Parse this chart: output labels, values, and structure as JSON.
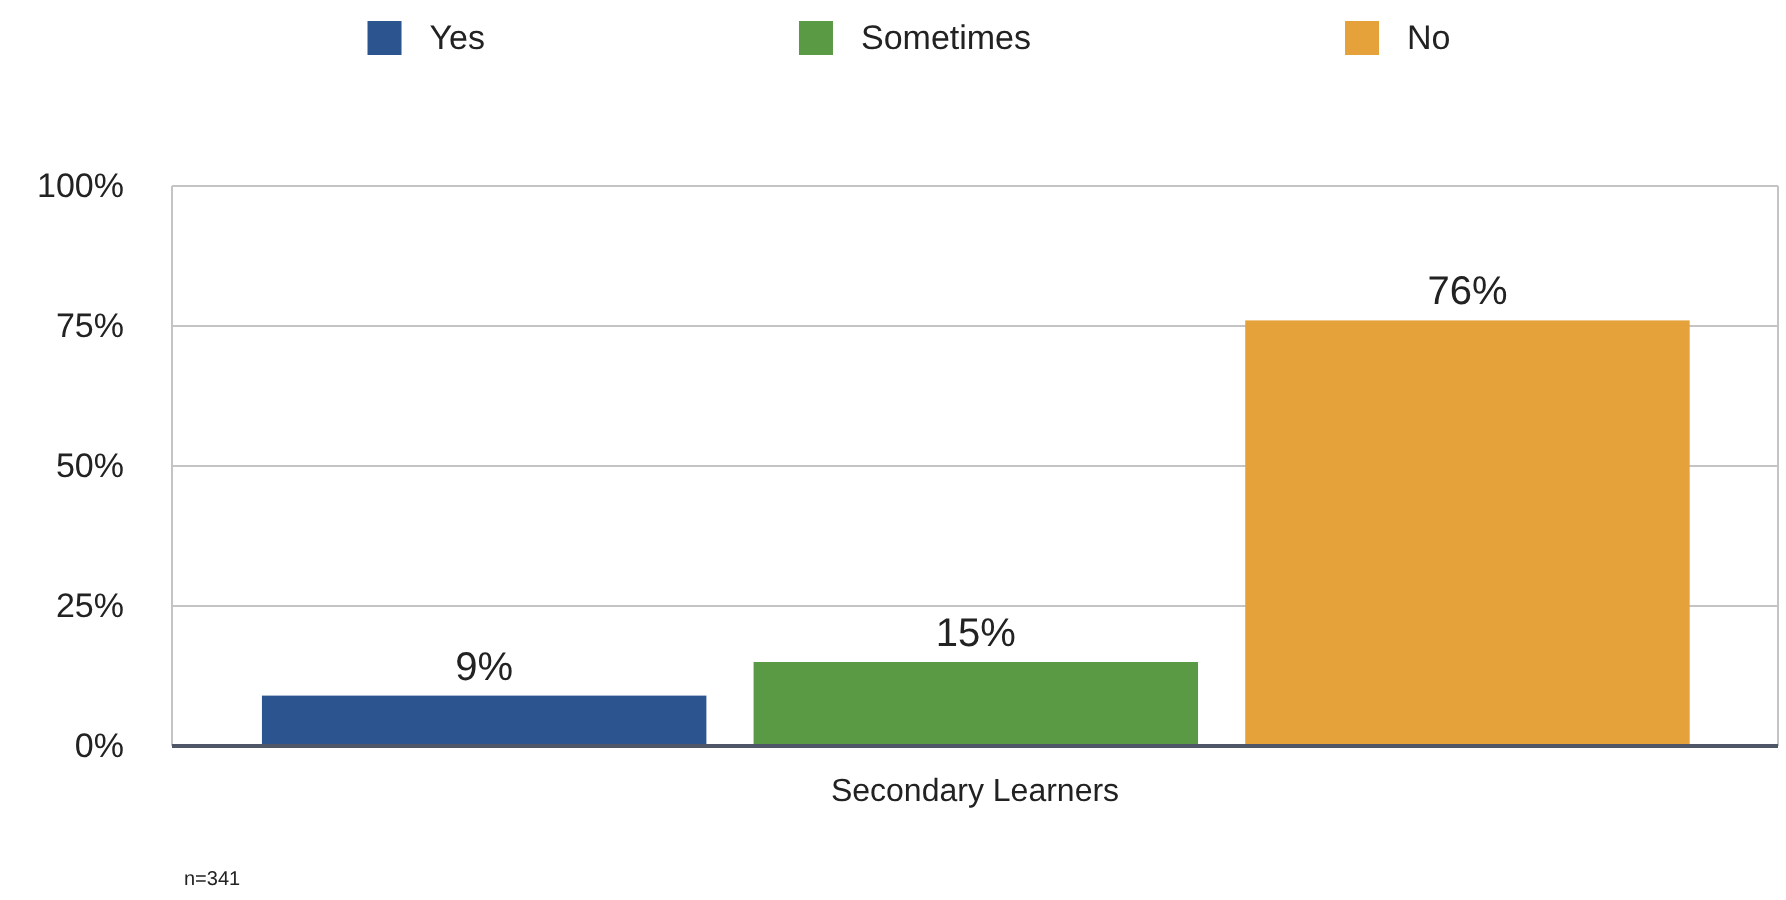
{
  "chart_data": {
    "type": "bar",
    "categories": [
      "Secondary Learners"
    ],
    "series": [
      {
        "name": "Yes",
        "color": "#2c5590",
        "values": [
          9
        ],
        "value_labels": [
          "9%"
        ]
      },
      {
        "name": "Sometimes",
        "color": "#5b9a45",
        "values": [
          15
        ],
        "value_labels": [
          "15%"
        ]
      },
      {
        "name": "No",
        "color": "#e5a23b",
        "values": [
          76
        ],
        "value_labels": [
          "76%"
        ]
      }
    ],
    "ylim": [
      0,
      100
    ],
    "yticks": [
      {
        "value": 0,
        "label": "0%"
      },
      {
        "value": 25,
        "label": "25%"
      },
      {
        "value": 50,
        "label": "50%"
      },
      {
        "value": 75,
        "label": "75%"
      },
      {
        "value": 100,
        "label": "100%"
      }
    ],
    "grid": "y",
    "legend": "top",
    "annotations": [
      "n=341"
    ]
  }
}
